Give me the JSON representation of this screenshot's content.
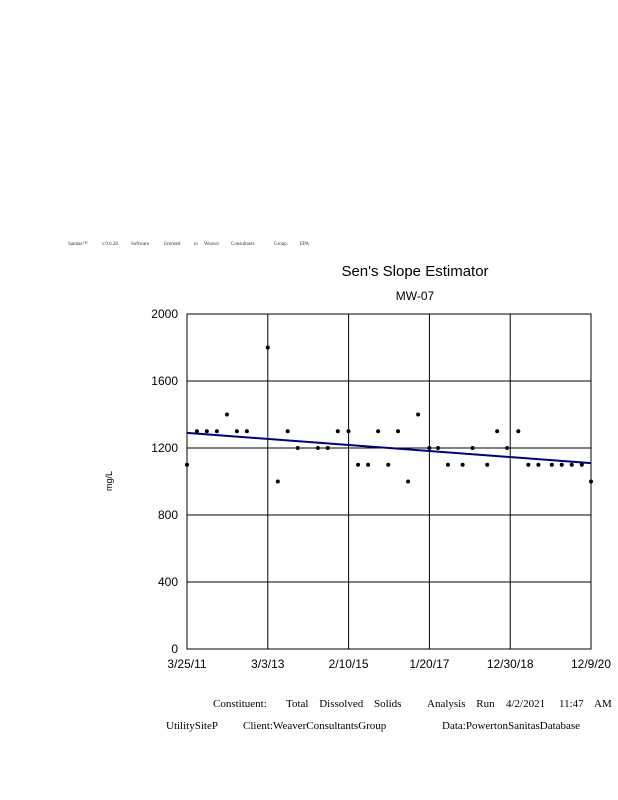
{
  "header": {
    "words": [
      "Sanitas™",
      "v.9.6.28",
      "Software",
      "licensed",
      "to",
      "Weaver",
      "Consultants",
      "Group.",
      "EPA"
    ]
  },
  "chart_data": {
    "type": "scatter",
    "title": "Sen's Slope Estimator",
    "subtitle": "MW-07",
    "ylabel": "mg/L",
    "xlabel": "",
    "ylim": [
      0,
      2000
    ],
    "xlim": [
      "2011-03-25",
      "2020-12-09"
    ],
    "yticks": [
      0,
      400,
      800,
      1200,
      1600,
      2000
    ],
    "xtick_labels": [
      "3/25/11",
      "3/3/13",
      "2/10/15",
      "1/20/17",
      "12/30/18",
      "12/9/20"
    ],
    "grid": true,
    "point_color": "#000000",
    "trend_color": "#000080",
    "points": [
      {
        "x": "2011-03-25",
        "y": 1100
      },
      {
        "x": "2011-06-20",
        "y": 1300
      },
      {
        "x": "2011-09-15",
        "y": 1300
      },
      {
        "x": "2011-12-12",
        "y": 1300
      },
      {
        "x": "2012-03-10",
        "y": 1400
      },
      {
        "x": "2012-06-05",
        "y": 1300
      },
      {
        "x": "2012-09-01",
        "y": 1300
      },
      {
        "x": "2013-03-03",
        "y": 1800
      },
      {
        "x": "2013-05-30",
        "y": 1000
      },
      {
        "x": "2013-08-25",
        "y": 1300
      },
      {
        "x": "2013-11-21",
        "y": 1200
      },
      {
        "x": "2014-05-17",
        "y": 1200
      },
      {
        "x": "2014-08-12",
        "y": 1200
      },
      {
        "x": "2014-11-08",
        "y": 1300
      },
      {
        "x": "2015-02-10",
        "y": 1300
      },
      {
        "x": "2015-05-05",
        "y": 1100
      },
      {
        "x": "2015-08-01",
        "y": 1100
      },
      {
        "x": "2015-10-28",
        "y": 1300
      },
      {
        "x": "2016-01-25",
        "y": 1100
      },
      {
        "x": "2016-04-20",
        "y": 1300
      },
      {
        "x": "2016-07-17",
        "y": 1000
      },
      {
        "x": "2016-10-13",
        "y": 1400
      },
      {
        "x": "2017-01-20",
        "y": 1200
      },
      {
        "x": "2017-04-06",
        "y": 1200
      },
      {
        "x": "2017-07-02",
        "y": 1100
      },
      {
        "x": "2017-11-08",
        "y": 1100
      },
      {
        "x": "2018-02-03",
        "y": 1200
      },
      {
        "x": "2018-06-12",
        "y": 1100
      },
      {
        "x": "2018-09-07",
        "y": 1300
      },
      {
        "x": "2018-12-04",
        "y": 1200
      },
      {
        "x": "2019-03-12",
        "y": 1300
      },
      {
        "x": "2019-06-08",
        "y": 1100
      },
      {
        "x": "2019-09-04",
        "y": 1100
      },
      {
        "x": "2019-12-31",
        "y": 1100
      },
      {
        "x": "2020-03-27",
        "y": 1100
      },
      {
        "x": "2020-06-23",
        "y": 1100
      },
      {
        "x": "2020-09-19",
        "y": 1100
      },
      {
        "x": "2020-12-09",
        "y": 1000
      }
    ],
    "trend": {
      "start": {
        "x": "2011-03-25",
        "y": 1290
      },
      "end": {
        "x": "2020-12-09",
        "y": 1110
      }
    }
  },
  "footer": {
    "constituent_label": "Constituent:",
    "constituent_value": "Total Dissolved Solids",
    "analysis_run_label": "Analysis Run",
    "run_date": "4/2/2021",
    "run_time": "11:47",
    "run_ampm": "AM",
    "site": "UtilitySiteP",
    "client": "Client:WeaverConsultantsGroup",
    "database": "Data:PowertonSanitasDatabase"
  }
}
